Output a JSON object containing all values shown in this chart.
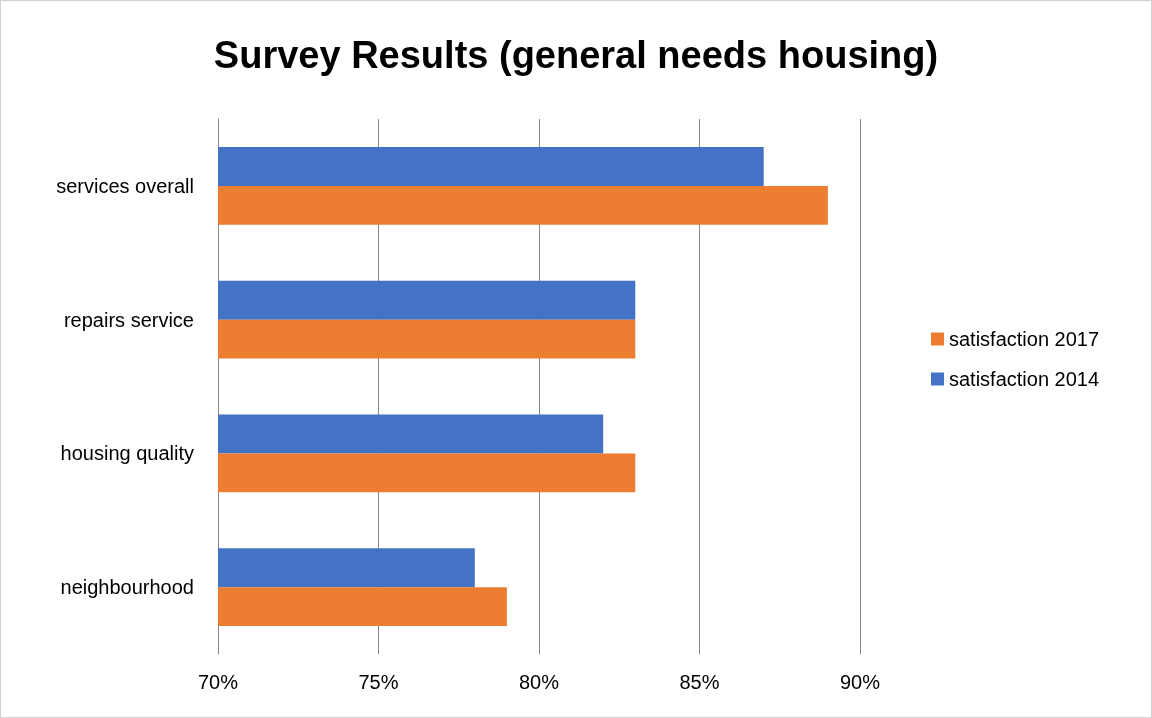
{
  "chart_data": {
    "type": "bar",
    "orientation": "horizontal",
    "title": "Survey Results (general needs housing)",
    "categories": [
      "services overall",
      "repairs service",
      "housing quality",
      "neighbourhood"
    ],
    "series": [
      {
        "name": "satisfaction 2017",
        "color": "#ed7d31",
        "values": [
          89,
          83,
          83,
          79
        ]
      },
      {
        "name": "satisfaction 2014",
        "color": "#4472c4",
        "values": [
          87,
          83,
          82,
          78
        ]
      }
    ],
    "xlim": [
      70,
      90
    ],
    "xticks": [
      {
        "value": 70,
        "label": "70%"
      },
      {
        "value": 75,
        "label": "75%"
      },
      {
        "value": 80,
        "label": "80%"
      },
      {
        "value": 85,
        "label": "85%"
      },
      {
        "value": 90,
        "label": "90%"
      }
    ],
    "grid": "x",
    "legend": "right"
  }
}
